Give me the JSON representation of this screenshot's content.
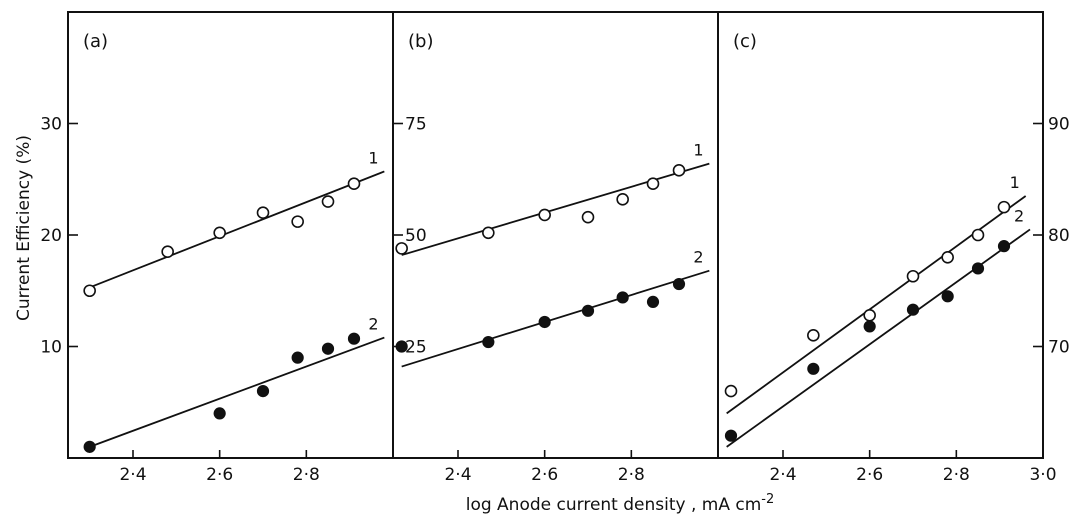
{
  "chart_data": {
    "ylabel": "Current Efficiency (%)",
    "xlabel": "log Anode current density , mA cm",
    "xlabel_sup": "-2",
    "panels": [
      {
        "label": "(a)",
        "type": "scatter",
        "xlim": [
          2.25,
          3.0
        ],
        "ylim": [
          0,
          40
        ],
        "y_ticks": [
          10,
          20,
          30
        ],
        "y_tick_labels": [
          "10",
          "20",
          "30"
        ],
        "y_tick_side": "left",
        "x_ticks": [
          2.4,
          2.6,
          2.8
        ],
        "x_tick_labels": [
          "2·4",
          "2·6",
          "2·8"
        ],
        "series": [
          {
            "marker": "open",
            "label": "1",
            "x": [
              2.3,
              2.48,
              2.6,
              2.7,
              2.78,
              2.85,
              2.91
            ],
            "y": [
              15.0,
              18.5,
              20.2,
              22.0,
              21.2,
              23.0,
              24.6
            ],
            "fit": [
              [
                2.3,
                15.3
              ],
              [
                2.98,
                25.7
              ]
            ]
          },
          {
            "marker": "filled",
            "label": "2",
            "x": [
              2.3,
              2.6,
              2.7,
              2.78,
              2.85,
              2.91
            ],
            "y": [
              1.0,
              4.0,
              6.0,
              9.0,
              9.8,
              10.7
            ],
            "fit": [
              [
                2.3,
                1.0
              ],
              [
                2.98,
                10.8
              ]
            ]
          }
        ]
      },
      {
        "label": "(b)",
        "type": "scatter",
        "xlim": [
          2.25,
          3.0
        ],
        "ylim": [
          0,
          100
        ],
        "y_ticks": [
          25,
          50,
          75
        ],
        "y_tick_labels": [
          "25",
          "50",
          "75"
        ],
        "y_tick_side": "left",
        "x_ticks": [
          2.4,
          2.6,
          2.8
        ],
        "x_tick_labels": [
          "2·4",
          "2·6",
          "2·8"
        ],
        "series": [
          {
            "marker": "open",
            "label": "1",
            "x": [
              2.27,
              2.47,
              2.6,
              2.7,
              2.78,
              2.85,
              2.91
            ],
            "y": [
              47.0,
              50.5,
              54.5,
              54.0,
              58.0,
              61.5,
              64.5
            ],
            "fit": [
              [
                2.27,
                45.5
              ],
              [
                2.98,
                66.0
              ]
            ]
          },
          {
            "marker": "filled",
            "label": "2",
            "x": [
              2.27,
              2.47,
              2.6,
              2.7,
              2.78,
              2.85,
              2.91
            ],
            "y": [
              25.0,
              26.0,
              30.5,
              33.0,
              36.0,
              35.0,
              39.0
            ],
            "fit": [
              [
                2.27,
                20.5
              ],
              [
                2.98,
                42.0
              ]
            ]
          }
        ]
      },
      {
        "label": "(c)",
        "type": "scatter",
        "xlim": [
          2.25,
          3.0
        ],
        "ylim": [
          60,
          100
        ],
        "y_ticks": [
          70,
          80,
          90
        ],
        "y_tick_labels": [
          "70",
          "80",
          "90"
        ],
        "y_tick_side": "right",
        "x_ticks": [
          2.4,
          2.6,
          2.8,
          3.0
        ],
        "x_tick_labels": [
          "2·4",
          "2·6",
          "2·8",
          "3·0"
        ],
        "series": [
          {
            "marker": "open",
            "label": "1",
            "x": [
              2.28,
              2.47,
              2.6,
              2.7,
              2.78,
              2.85,
              2.91
            ],
            "y": [
              66.0,
              71.0,
              72.8,
              76.3,
              78.0,
              80.0,
              82.5
            ],
            "fit": [
              [
                2.27,
                64.0
              ],
              [
                2.96,
                83.5
              ]
            ]
          },
          {
            "marker": "filled",
            "label": "2",
            "x": [
              2.28,
              2.47,
              2.6,
              2.7,
              2.78,
              2.85,
              2.91
            ],
            "y": [
              62.0,
              68.0,
              71.8,
              73.3,
              74.5,
              77.0,
              79.0
            ],
            "fit": [
              [
                2.27,
                61.0
              ],
              [
                2.97,
                80.5
              ]
            ]
          }
        ]
      }
    ]
  }
}
